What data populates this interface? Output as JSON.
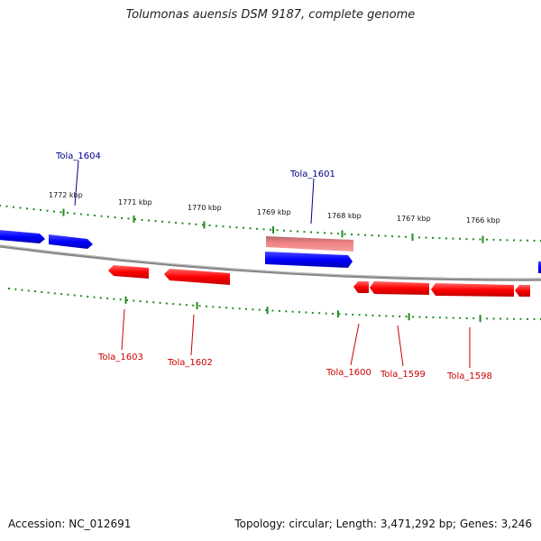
{
  "title": "Tolumonas auensis DSM 9187, complete genome",
  "footer": {
    "accession": "Accession: NC_012691",
    "topology": "Topology: circular; Length: 3,471,292 bp; Genes: 3,246"
  },
  "colors": {
    "forward": "#0000ff",
    "reverse": "#ff0000",
    "highlight": "#f08080",
    "tick": "#228b22",
    "backbone": "#888888",
    "forward_label": "#00008b",
    "reverse_label": "#cc0000"
  },
  "scale_labels": [
    {
      "text": "1772 kbp",
      "kbp": 1772
    },
    {
      "text": "1771 kbp",
      "kbp": 1771
    },
    {
      "text": "1770 kbp",
      "kbp": 1770
    },
    {
      "text": "1769 kbp",
      "kbp": 1769
    },
    {
      "text": "1768 kbp",
      "kbp": 1768
    },
    {
      "text": "1767 kbp",
      "kbp": 1767
    },
    {
      "text": "1766 kbp",
      "kbp": 1766
    }
  ],
  "gene_labels": [
    {
      "text": "Tola_1604",
      "strand": "forward"
    },
    {
      "text": "Tola_1601",
      "strand": "forward"
    },
    {
      "text": "Tola_1603",
      "strand": "reverse"
    },
    {
      "text": "Tola_1602",
      "strand": "reverse"
    },
    {
      "text": "Tola_1600",
      "strand": "reverse"
    },
    {
      "text": "Tola_1599",
      "strand": "reverse"
    },
    {
      "text": "Tola_1598",
      "strand": "reverse"
    }
  ]
}
